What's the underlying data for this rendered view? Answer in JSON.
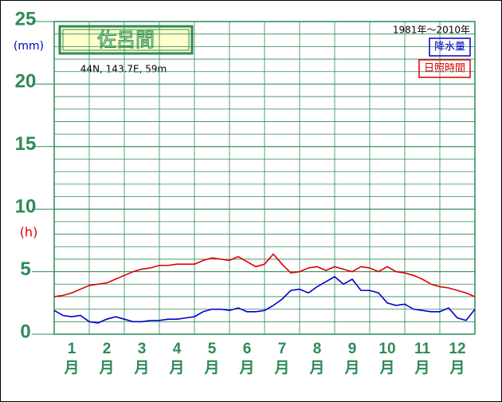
{
  "chart_data": {
    "type": "line",
    "title": "佐呂間",
    "subtitle": "44N, 143.7E, 59m",
    "period": "1981年〜2010年",
    "y_unit_left": "(mm)",
    "y_unit_right": "(h)",
    "x_unit_label": "月",
    "categories": [
      "1",
      "2",
      "3",
      "4",
      "5",
      "6",
      "7",
      "8",
      "9",
      "10",
      "11",
      "12"
    ],
    "x": [
      0,
      0.25,
      0.5,
      0.75,
      1,
      1.25,
      1.5,
      1.75,
      2,
      2.25,
      2.5,
      2.75,
      3,
      3.25,
      3.5,
      3.75,
      4,
      4.25,
      4.5,
      4.75,
      5,
      5.25,
      5.5,
      5.75,
      6,
      6.25,
      6.5,
      6.75,
      7,
      7.25,
      7.5,
      7.75,
      8,
      8.25,
      8.5,
      8.75,
      9,
      9.25,
      9.5,
      9.75,
      10,
      10.25,
      10.5,
      10.75,
      11,
      11.25,
      11.5,
      11.75,
      12
    ],
    "xlim": [
      0,
      12
    ],
    "series": [
      {
        "name": "降水量",
        "color": "#0000cc",
        "values": [
          1.9,
          1.5,
          1.4,
          1.5,
          1.0,
          0.9,
          1.2,
          1.4,
          1.2,
          1.0,
          1.0,
          1.1,
          1.1,
          1.2,
          1.2,
          1.3,
          1.4,
          1.8,
          2.0,
          2.0,
          1.9,
          2.1,
          1.8,
          1.8,
          1.9,
          2.3,
          2.8,
          3.5,
          3.6,
          3.3,
          3.8,
          4.2,
          4.6,
          4.0,
          4.4,
          3.5,
          3.5,
          3.3,
          2.5,
          2.3,
          2.4,
          2.0,
          1.9,
          1.8,
          1.8,
          2.1,
          1.3,
          1.1,
          2.0
        ]
      },
      {
        "name": "日照時間",
        "color": "#dd0000",
        "values": [
          3.0,
          3.1,
          3.3,
          3.6,
          3.9,
          4.0,
          4.1,
          4.4,
          4.7,
          5.0,
          5.2,
          5.3,
          5.5,
          5.5,
          5.6,
          5.6,
          5.6,
          5.9,
          6.1,
          6.0,
          5.9,
          6.2,
          5.8,
          5.4,
          5.6,
          6.4,
          5.6,
          4.9,
          5.0,
          5.3,
          5.4,
          5.1,
          5.4,
          5.2,
          5.0,
          5.4,
          5.3,
          5.0,
          5.4,
          5.0,
          4.9,
          4.7,
          4.4,
          4.0,
          3.8,
          3.7,
          3.5,
          3.3,
          3.0
        ]
      }
    ],
    "ylim": [
      0,
      25
    ],
    "yticks": [
      0,
      5,
      10,
      15,
      20,
      25
    ],
    "minor_step": 1,
    "grid": true,
    "legend": "upper right",
    "axis_color": "#2e8b57",
    "unit_colors": [
      "#0000cc",
      "#dd0000"
    ]
  }
}
